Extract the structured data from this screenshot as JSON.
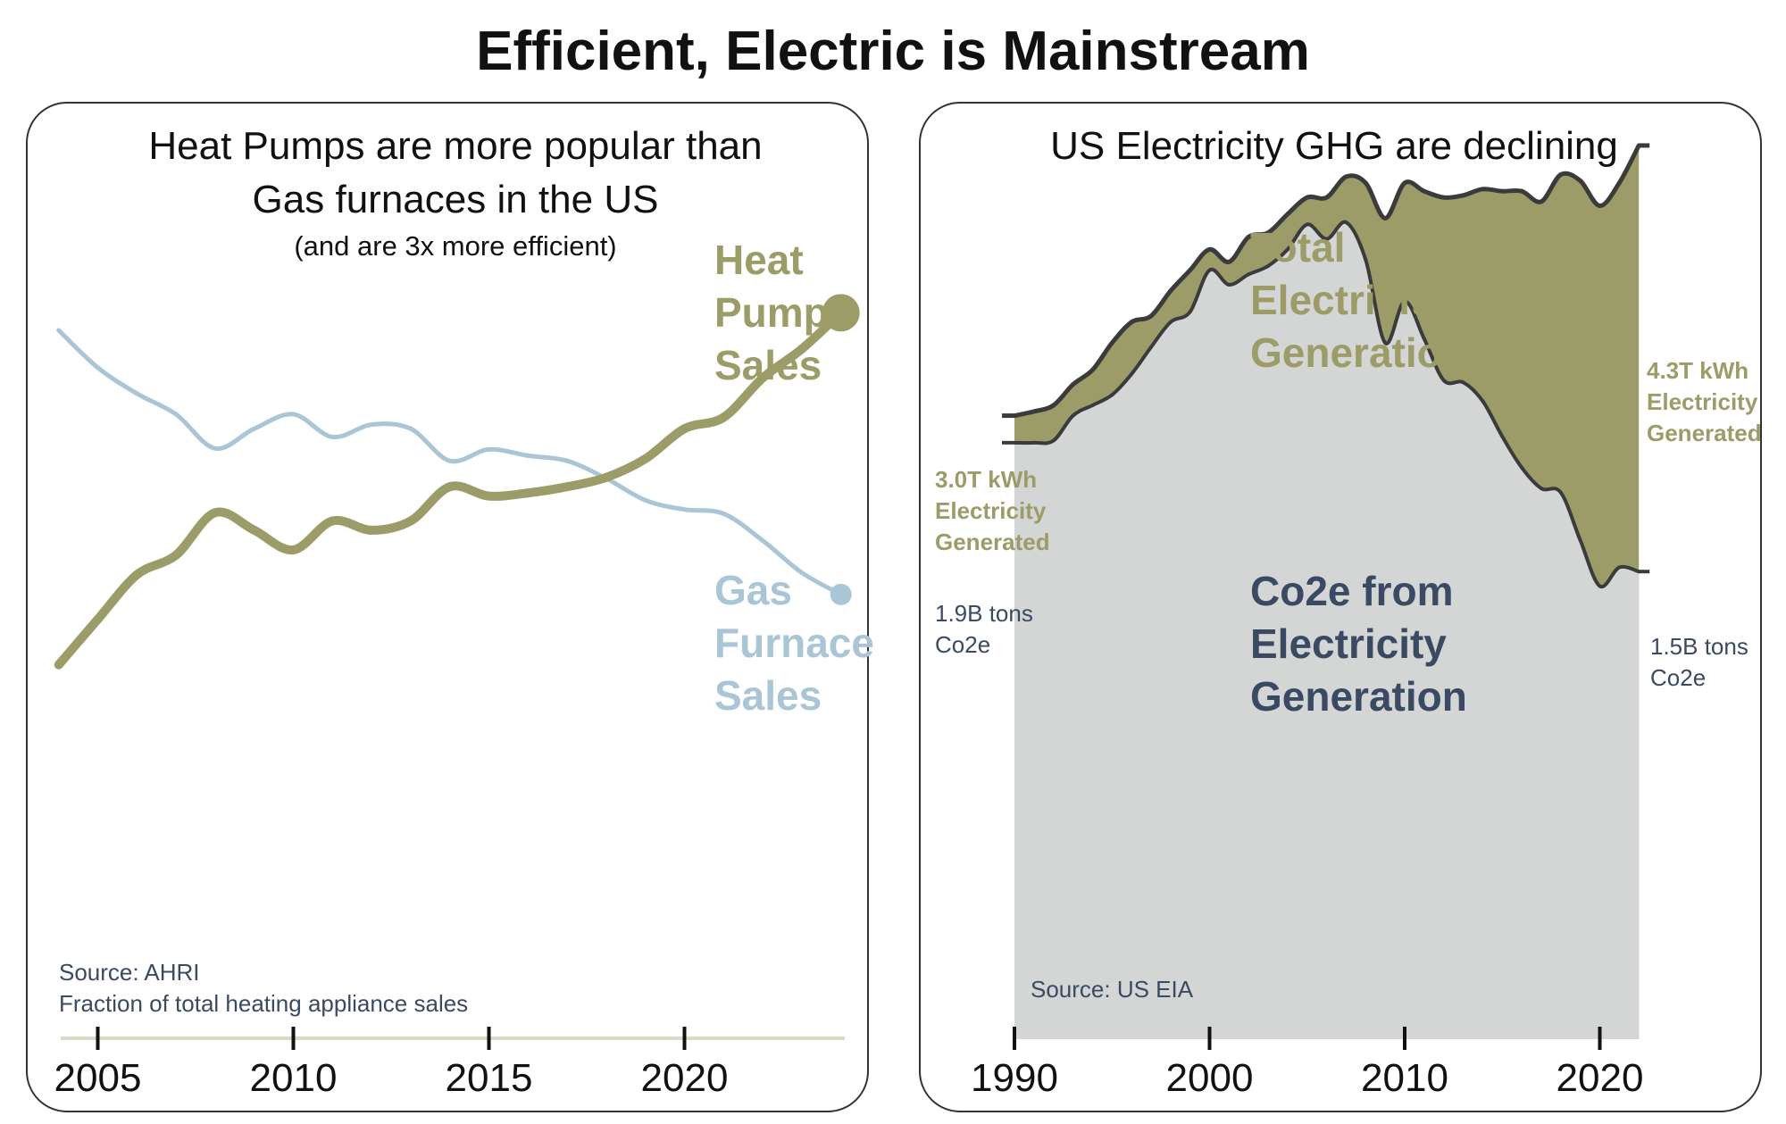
{
  "page": {
    "title": "Efficient, Electric is Mainstream"
  },
  "colors": {
    "olive": "#9c9c68",
    "blue": "#a9c5d6",
    "navy": "#3a4a63",
    "gray": "#d4d6d6",
    "dark": "#3b3b3b",
    "axis_line": "#d8dcc4"
  },
  "chart_data": [
    {
      "type": "line",
      "title": [
        "Heat Pumps are more popular than",
        "Gas furnaces in the US"
      ],
      "subtitle": "(and are 3x more efficient)",
      "xlabel": "",
      "ylabel": "",
      "xlim": [
        2004,
        2024
      ],
      "ylim": [
        0,
        1
      ],
      "x_ticks": [
        2005,
        2010,
        2015,
        2020
      ],
      "x": [
        2004,
        2005,
        2006,
        2007,
        2008,
        2009,
        2010,
        2011,
        2012,
        2013,
        2014,
        2015,
        2016,
        2017,
        2018,
        2019,
        2020,
        2021,
        2022,
        2023,
        2024
      ],
      "series": [
        {
          "name": "Heat Pump Sales",
          "label_lines": [
            "Heat",
            "Pump",
            "Sales"
          ],
          "values": [
            0.358,
            0.402,
            0.445,
            0.464,
            0.505,
            0.488,
            0.469,
            0.497,
            0.488,
            0.497,
            0.53,
            0.521,
            0.524,
            0.53,
            0.539,
            0.557,
            0.586,
            0.597,
            0.635,
            0.663,
            0.698
          ]
        },
        {
          "name": "Gas Furnace Sales",
          "label_lines": [
            "Gas",
            "Furnace",
            "Sales"
          ],
          "values": [
            0.681,
            0.645,
            0.62,
            0.6,
            0.567,
            0.586,
            0.6,
            0.578,
            0.59,
            0.586,
            0.555,
            0.566,
            0.56,
            0.555,
            0.538,
            0.517,
            0.508,
            0.504,
            0.478,
            0.447,
            0.426
          ]
        }
      ],
      "source_lines": [
        "Source: AHRI",
        "Fraction of total heating appliance sales"
      ]
    },
    {
      "type": "area",
      "title": "US Electricity GHG are declining",
      "xlabel": "",
      "ylabel": "",
      "xlim": [
        1990,
        2022
      ],
      "ylim": [
        0,
        5.0
      ],
      "x_ticks": [
        1990,
        2000,
        2010,
        2020
      ],
      "x": [
        1990,
        1991,
        1992,
        1993,
        1994,
        1995,
        1996,
        1997,
        1998,
        1999,
        2000,
        2001,
        2002,
        2003,
        2004,
        2005,
        2006,
        2007,
        2008,
        2009,
        2010,
        2011,
        2012,
        2013,
        2014,
        2015,
        2016,
        2017,
        2018,
        2019,
        2020,
        2021,
        2022
      ],
      "series": [
        {
          "name": "Total Electricity Generation",
          "label_lines": [
            "Total",
            "Electricity",
            "Generation"
          ],
          "values": [
            3.0,
            3.02,
            3.05,
            3.15,
            3.22,
            3.35,
            3.45,
            3.48,
            3.6,
            3.7,
            3.8,
            3.74,
            3.86,
            3.88,
            3.97,
            4.05,
            4.05,
            4.15,
            4.12,
            3.95,
            4.12,
            4.08,
            4.05,
            4.06,
            4.09,
            4.08,
            4.08,
            4.03,
            4.16,
            4.13,
            4.01,
            4.12,
            4.3
          ]
        },
        {
          "name": "Co2e from Electricity Generation",
          "label_lines": [
            "Co2e from",
            "Electricity",
            "Generation"
          ],
          "values": [
            2.87,
            2.87,
            2.88,
            3.0,
            3.05,
            3.1,
            3.2,
            3.33,
            3.45,
            3.5,
            3.7,
            3.63,
            3.68,
            3.72,
            3.8,
            3.92,
            3.85,
            3.93,
            3.75,
            3.35,
            3.55,
            3.37,
            3.17,
            3.16,
            3.07,
            2.9,
            2.75,
            2.65,
            2.63,
            2.4,
            2.18,
            2.27,
            2.25
          ]
        }
      ],
      "annotations": {
        "start_generation": [
          "3.0T kWh",
          "Electricity",
          "Generated"
        ],
        "end_generation": [
          "4.3T kWh",
          "Electricity",
          "Generated"
        ],
        "start_co2": [
          "1.9B tons",
          "Co2e"
        ],
        "end_co2": [
          "1.5B tons",
          "Co2e"
        ]
      },
      "source": "Source: US EIA"
    }
  ]
}
